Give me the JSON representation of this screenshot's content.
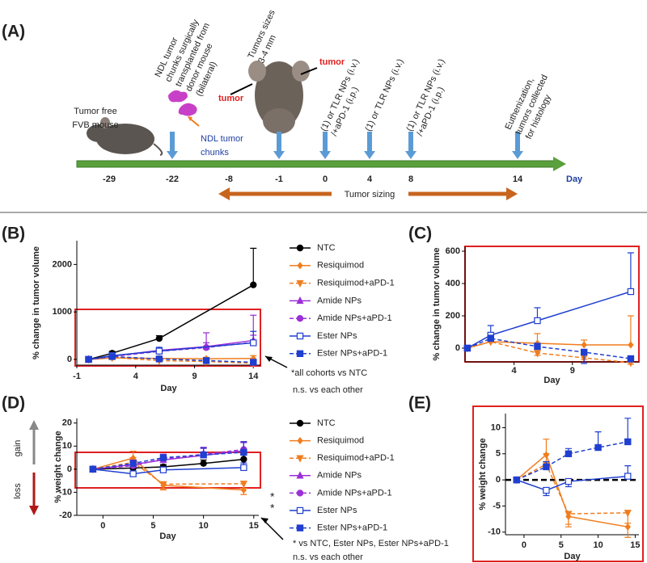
{
  "timeline": {
    "label": "(A)",
    "days": [
      -29,
      -22,
      -8,
      -1,
      0,
      4,
      8,
      14
    ],
    "axis_label": "Day",
    "sizing_label": "Tumor sizing",
    "notes": [
      [
        "Tumor free",
        "FVB mouse"
      ],
      [
        "NDL tumor",
        "chunks surgically",
        "transplanted from",
        "donor mouse",
        "(bilateral)"
      ],
      [
        "NDL tumor",
        "chunks"
      ],
      [
        "Tumors sizes",
        "3-4 mm"
      ],
      [
        "(1) or TLR NPs (i.v.)",
        "/+aPD-1 (i.p.)"
      ],
      [
        "(1) or TLR NPs (i.v.)"
      ],
      [
        "(1) or TLR NPs (i.v.)",
        "/+aPD-1 (i.p.)"
      ],
      [
        "Euthenization,",
        "tumors collected",
        "for histology"
      ]
    ],
    "tumor_labels": [
      "tumor",
      "tumor"
    ]
  },
  "chart_data": [
    {
      "type": "line",
      "label": "(B)",
      "x_label": "Day",
      "y_label": "% change in tumor volume",
      "x": [
        0,
        2,
        6,
        10,
        14
      ],
      "xlim": [
        -1,
        14.6
      ],
      "xticks": [
        -1,
        4,
        9,
        14
      ],
      "ylim": [
        -120,
        2500
      ],
      "yticks": [
        0,
        1000,
        2000
      ],
      "legend": "right",
      "annotations": [
        "*all cohorts vs NTC",
        "n.s. vs each other"
      ],
      "series": [
        {
          "name": "NTC",
          "color": "#000000",
          "marker": "circle",
          "dashed": false,
          "x": [
            0,
            2,
            6,
            14
          ],
          "values": [
            0,
            130,
            440,
            1570
          ],
          "errors": [
            20,
            40,
            60,
            770
          ]
        },
        {
          "name": "Resiquimod",
          "color": "#f07d1e",
          "marker": "diamond",
          "dashed": false,
          "values": [
            0,
            30,
            20,
            15,
            20
          ],
          "errors": [
            10,
            20,
            30,
            30,
            60
          ]
        },
        {
          "name": "Resiquimod+aPD-1",
          "color": "#f07d1e",
          "marker": "tri-down",
          "dashed": true,
          "values": [
            0,
            40,
            -25,
            -45,
            -80
          ],
          "errors": [
            10,
            20,
            20,
            20,
            20
          ]
        },
        {
          "name": "Amide NPs",
          "color": "#9b2fd8",
          "marker": "tri-up",
          "dashed": false,
          "values": [
            0,
            70,
            190,
            270,
            400
          ],
          "errors": [
            10,
            30,
            40,
            290,
            530
          ]
        },
        {
          "name": "Amide NPs+aPD-1",
          "color": "#9b2fd8",
          "marker": "circle",
          "dashed": true,
          "values": [
            0,
            60,
            170,
            250,
            360
          ],
          "errors": [
            10,
            30,
            40,
            100,
            150
          ]
        },
        {
          "name": "Ester NPs",
          "color": "#1f3fd0",
          "marker": "square-open",
          "dashed": false,
          "x": [
            0,
            2,
            6,
            14
          ],
          "values": [
            0,
            80,
            175,
            350
          ],
          "errors": [
            10,
            60,
            80,
            240
          ]
        },
        {
          "name": "Ester NPs+aPD-1",
          "color": "#1f3fd0",
          "marker": "square",
          "dashed": true,
          "values": [
            0,
            60,
            10,
            -25,
            -60
          ],
          "errors": [
            10,
            20,
            20,
            30,
            20
          ]
        }
      ]
    },
    {
      "type": "line",
      "label": "(C)",
      "x_label": "Day",
      "y_label": "% change in tumor volume",
      "x": [
        0,
        2,
        6,
        10,
        14
      ],
      "xlim": [
        -0.2,
        14.7
      ],
      "xticks": [
        4,
        9
      ],
      "ylim": [
        -85,
        630
      ],
      "yticks": [
        0,
        200,
        400,
        600
      ],
      "series": [
        {
          "color": "#f07d1e",
          "marker": "diamond",
          "dashed": false,
          "values": [
            0,
            40,
            30,
            20,
            20
          ],
          "errors": [
            5,
            20,
            60,
            30,
            180
          ]
        },
        {
          "color": "#f07d1e",
          "marker": "tri-down",
          "dashed": true,
          "values": [
            0,
            40,
            -30,
            -60,
            -90
          ],
          "errors": [
            5,
            10,
            15,
            10,
            10
          ]
        },
        {
          "color": "#1f3fd0",
          "marker": "square-open",
          "dashed": false,
          "x": [
            0,
            2,
            6,
            14
          ],
          "values": [
            0,
            80,
            170,
            350
          ],
          "errors": [
            5,
            60,
            80,
            240
          ]
        },
        {
          "color": "#1f3fd0",
          "marker": "square",
          "dashed": true,
          "values": [
            0,
            60,
            10,
            -25,
            -65
          ],
          "errors": [
            5,
            20,
            20,
            70,
            20
          ]
        }
      ]
    },
    {
      "type": "line",
      "label": "(D)",
      "x_label": "Day",
      "y_label": "% weight change",
      "x": [
        -1,
        3,
        6,
        10,
        14
      ],
      "xlim": [
        -2.6,
        15.5
      ],
      "xticks": [
        0,
        5,
        10,
        15
      ],
      "ylim": [
        -20,
        22
      ],
      "yticks": [
        -20,
        -10,
        0,
        10,
        20
      ],
      "legend": "right",
      "annotations": [
        "* vs NTC, Ester NPs, Ester NPs+aPD-1",
        "n.s. vs each other",
        "*",
        "*",
        "gain",
        "loss"
      ],
      "series": [
        {
          "name": "NTC",
          "color": "#000000",
          "marker": "circle",
          "dashed": false,
          "values": [
            0,
            0.5,
            1,
            2.5,
            4.3
          ],
          "errors": [
            0.5,
            1,
            1,
            1.5,
            2
          ]
        },
        {
          "name": "Resiquimod",
          "color": "#f07d1e",
          "marker": "diamond",
          "dashed": false,
          "x": [
            -1,
            3,
            6,
            14
          ],
          "values": [
            0,
            4.8,
            -7,
            -9
          ],
          "errors": [
            0.5,
            3,
            2,
            2
          ]
        },
        {
          "name": "Resiquimod+aPD-1",
          "color": "#f07d1e",
          "marker": "tri-down",
          "dashed": true,
          "x": [
            -1,
            3,
            6,
            14
          ],
          "values": [
            0,
            3,
            -6.5,
            -6.3
          ],
          "errors": [
            0.5,
            2,
            2,
            2
          ]
        },
        {
          "name": "Amide NPs",
          "color": "#9b2fd8",
          "marker": "tri-up",
          "dashed": false,
          "values": [
            0,
            2,
            4,
            6,
            8
          ],
          "errors": [
            0.5,
            2,
            2,
            3,
            4
          ]
        },
        {
          "name": "Amide NPs+aPD-1",
          "color": "#9b2fd8",
          "marker": "circle",
          "dashed": true,
          "values": [
            0,
            1.5,
            4.5,
            6.5,
            8.5
          ],
          "errors": [
            0.5,
            2,
            2,
            3,
            3
          ]
        },
        {
          "name": "Ester NPs",
          "color": "#1f3fd0",
          "marker": "square-open",
          "dashed": false,
          "x": [
            -1,
            3,
            6,
            14
          ],
          "values": [
            0,
            -2,
            -0.3,
            0.7
          ],
          "errors": [
            0.5,
            1,
            1,
            2
          ]
        },
        {
          "name": "Ester NPs+aPD-1",
          "color": "#1f3fd0",
          "marker": "square",
          "dashed": true,
          "values": [
            0,
            2.5,
            5,
            6.2,
            7.3
          ],
          "errors": [
            0.5,
            1,
            1,
            3,
            4.5
          ]
        }
      ]
    },
    {
      "type": "line",
      "label": "(E)",
      "x_label": "Day",
      "y_label": "% weight change",
      "x": [
        -1,
        3,
        6,
        10,
        14
      ],
      "xlim": [
        -2.5,
        15.5
      ],
      "xticks": [
        0,
        5,
        10,
        15
      ],
      "ylim": [
        -10.5,
        12.7
      ],
      "yticks": [
        -10,
        -5,
        0,
        5,
        10
      ],
      "reference_line": 0,
      "series": [
        {
          "color": "#f07d1e",
          "marker": "diamond",
          "dashed": false,
          "x": [
            -1,
            3,
            6,
            14
          ],
          "values": [
            0,
            4.8,
            -7,
            -9
          ],
          "errors": [
            0.5,
            3,
            2,
            2
          ]
        },
        {
          "color": "#f07d1e",
          "marker": "tri-down",
          "dashed": true,
          "x": [
            -1,
            3,
            6,
            14
          ],
          "values": [
            0,
            3,
            -6.5,
            -6.3
          ],
          "errors": [
            0.5,
            2,
            2,
            2
          ]
        },
        {
          "color": "#1f3fd0",
          "marker": "square-open",
          "dashed": false,
          "x": [
            -1,
            3,
            6,
            14
          ],
          "values": [
            0,
            -2,
            -0.3,
            0.7
          ],
          "errors": [
            0.5,
            1,
            1,
            2
          ]
        },
        {
          "color": "#1f3fd0",
          "marker": "square",
          "dashed": true,
          "values": [
            0,
            2.5,
            5,
            6.2,
            7.3
          ],
          "errors": [
            0.5,
            1,
            1,
            3,
            4.5
          ]
        }
      ]
    }
  ]
}
